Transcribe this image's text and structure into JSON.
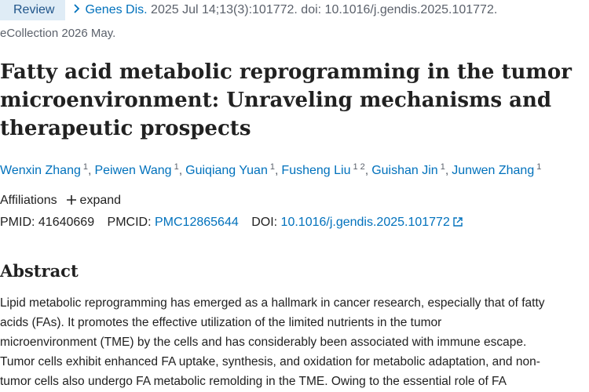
{
  "citation": {
    "badge": "Review",
    "journal": "Genes Dis.",
    "details": "2025 Jul 14;13(3):101772. doi: 10.1016/j.gendis.2025.101772.",
    "ecollection": "eCollection 2026 May."
  },
  "title": "Fatty acid metabolic reprogramming in the tumor microenvironment: Unraveling mechanisms and therapeutic prospects",
  "authors": [
    {
      "name": "Wenxin Zhang",
      "affiliations": [
        "1"
      ]
    },
    {
      "name": "Peiwen Wang",
      "affiliations": [
        "1"
      ]
    },
    {
      "name": "Guiqiang Yuan",
      "affiliations": [
        "1"
      ]
    },
    {
      "name": "Fusheng Liu",
      "affiliations": [
        "1",
        "2"
      ]
    },
    {
      "name": "Guishan Jin",
      "affiliations": [
        "1"
      ]
    },
    {
      "name": "Junwen Zhang",
      "affiliations": [
        "1"
      ]
    }
  ],
  "affiliations": {
    "label": "Affiliations",
    "expand": "expand"
  },
  "identifiers": {
    "pmid_label": "PMID:",
    "pmid": "41640669",
    "pmcid_label": "PMCID:",
    "pmcid": "PMC12865644",
    "doi_label": "DOI:",
    "doi": "10.1016/j.gendis.2025.101772"
  },
  "abstract": {
    "heading": "Abstract",
    "lines": [
      "Lipid metabolic reprogramming has emerged as a hallmark in cancer research, especially that of fatty",
      "acids (FAs). It promotes the effective utilization of the limited nutrients in the tumor",
      "microenvironment (TME) by the cells and has considerably been associated with immune escape.",
      "Tumor cells exhibit enhanced FA uptake, synthesis, and oxidation for metabolic adaptation, and non-",
      "tumor cells also undergo FA metabolic remolding in the TME. Owing to the essential role of FA"
    ]
  }
}
